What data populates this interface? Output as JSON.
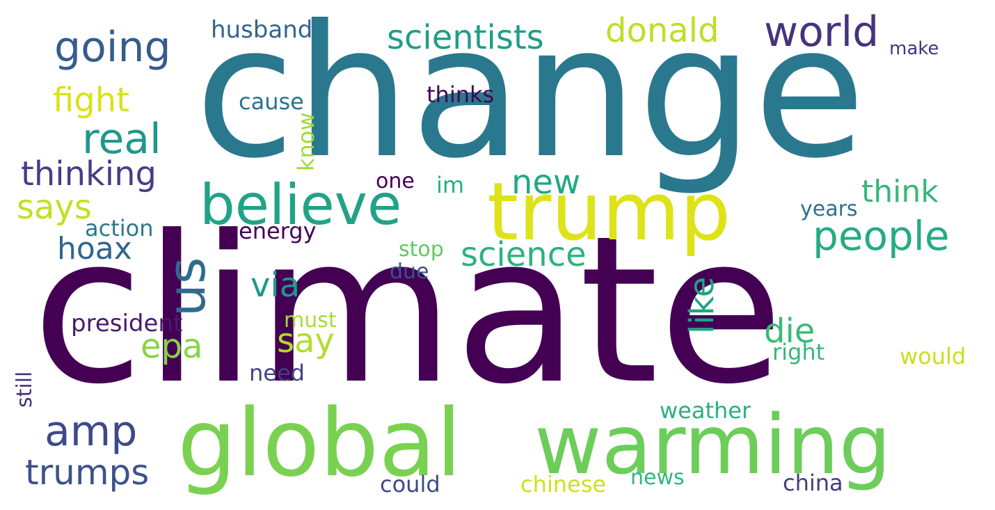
{
  "wordcloud": {
    "palette": {
      "dark_purple": "#440154",
      "indigo": "#46337e",
      "slate_blue": "#365c8d",
      "teal_blue": "#277f8e",
      "teal": "#1fa187",
      "green": "#4ac16d",
      "light_green": "#7ad151",
      "yellow_green": "#bddf26",
      "yellow": "#e6e419"
    },
    "words": [
      {
        "text": "change",
        "color": "#2a788e",
        "orientation": "horizontal"
      },
      {
        "text": "climate",
        "color": "#440154",
        "orientation": "horizontal"
      },
      {
        "text": "global",
        "color": "#7ad151",
        "orientation": "horizontal"
      },
      {
        "text": "warming",
        "color": "#6ccd5a",
        "orientation": "horizontal"
      },
      {
        "text": "trump",
        "color": "#dde318",
        "orientation": "horizontal"
      },
      {
        "text": "believe",
        "color": "#20a386",
        "orientation": "horizontal"
      },
      {
        "text": "us",
        "color": "#2f6b8e",
        "orientation": "vertical"
      },
      {
        "text": "world",
        "color": "#46337e",
        "orientation": "horizontal"
      },
      {
        "text": "going",
        "color": "#365c8d",
        "orientation": "horizontal"
      },
      {
        "text": "scientists",
        "color": "#1f9e89",
        "orientation": "horizontal"
      },
      {
        "text": "donald",
        "color": "#bddf26",
        "orientation": "horizontal"
      },
      {
        "text": "husband",
        "color": "#33638d",
        "orientation": "horizontal"
      },
      {
        "text": "make",
        "color": "#46337e",
        "orientation": "horizontal"
      },
      {
        "text": "fight",
        "color": "#d8e219",
        "orientation": "horizontal"
      },
      {
        "text": "real",
        "color": "#1f988b",
        "orientation": "horizontal"
      },
      {
        "text": "cause",
        "color": "#2c728e",
        "orientation": "horizontal"
      },
      {
        "text": "thinks",
        "color": "#440154",
        "orientation": "horizontal"
      },
      {
        "text": "know",
        "color": "#a0da39",
        "orientation": "vertical"
      },
      {
        "text": "thinking",
        "color": "#433e85",
        "orientation": "horizontal"
      },
      {
        "text": "new",
        "color": "#22a884",
        "orientation": "horizontal"
      },
      {
        "text": "one",
        "color": "#440154",
        "orientation": "horizontal"
      },
      {
        "text": "im",
        "color": "#29af7f",
        "orientation": "horizontal"
      },
      {
        "text": "think",
        "color": "#35b779",
        "orientation": "horizontal"
      },
      {
        "text": "says",
        "color": "#c2df23",
        "orientation": "horizontal"
      },
      {
        "text": "years",
        "color": "#2c728e",
        "orientation": "horizontal"
      },
      {
        "text": "people",
        "color": "#25ab82",
        "orientation": "horizontal"
      },
      {
        "text": "action",
        "color": "#2a788e",
        "orientation": "horizontal"
      },
      {
        "text": "energy",
        "color": "#440154",
        "orientation": "horizontal"
      },
      {
        "text": "hoax",
        "color": "#31668e",
        "orientation": "horizontal"
      },
      {
        "text": "stop",
        "color": "#5ec962",
        "orientation": "horizontal"
      },
      {
        "text": "science",
        "color": "#2db27d",
        "orientation": "horizontal"
      },
      {
        "text": "like",
        "color": "#20a386",
        "orientation": "vertical"
      },
      {
        "text": "due",
        "color": "#3b528b",
        "orientation": "horizontal"
      },
      {
        "text": "via",
        "color": "#1f9a8a",
        "orientation": "horizontal"
      },
      {
        "text": "president",
        "color": "#481a6c",
        "orientation": "horizontal"
      },
      {
        "text": "must",
        "color": "#a8db34",
        "orientation": "horizontal"
      },
      {
        "text": "die",
        "color": "#3bbb75",
        "orientation": "horizontal"
      },
      {
        "text": "epa",
        "color": "#86d549",
        "orientation": "horizontal"
      },
      {
        "text": "say",
        "color": "#b2dd2d",
        "orientation": "horizontal"
      },
      {
        "text": "still",
        "color": "#46327e",
        "orientation": "vertical"
      },
      {
        "text": "right",
        "color": "#35b779",
        "orientation": "horizontal"
      },
      {
        "text": "would",
        "color": "#c8e020",
        "orientation": "horizontal"
      },
      {
        "text": "need",
        "color": "#424086",
        "orientation": "horizontal"
      },
      {
        "text": "amp",
        "color": "#3e4989",
        "orientation": "horizontal"
      },
      {
        "text": "weather",
        "color": "#2ab07f",
        "orientation": "horizontal"
      },
      {
        "text": "trumps",
        "color": "#3b528b",
        "orientation": "horizontal"
      },
      {
        "text": "could",
        "color": "#3e4989",
        "orientation": "horizontal"
      },
      {
        "text": "chinese",
        "color": "#cde11d",
        "orientation": "horizontal"
      },
      {
        "text": "news",
        "color": "#32b67a",
        "orientation": "horizontal"
      },
      {
        "text": "china",
        "color": "#443983",
        "orientation": "horizontal"
      }
    ]
  }
}
